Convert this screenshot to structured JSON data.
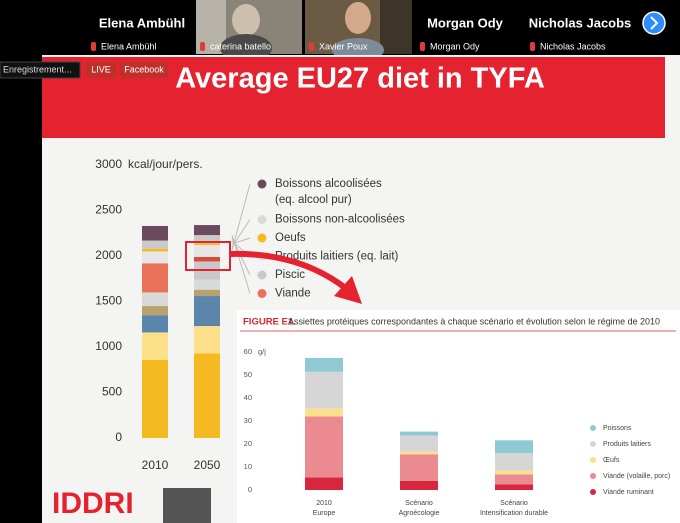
{
  "participants": [
    {
      "name": "Elena Ambühl",
      "label": "Elena Ambühl"
    },
    {
      "label": "caterina batello"
    },
    {
      "label": "Xavier Poux"
    },
    {
      "name": "Morgan Ody",
      "label": "Morgan Ody"
    },
    {
      "name": "Nicholas Jacobs",
      "label": "Nicholas Jacobs"
    }
  ],
  "badges": [
    "Enregistrement...",
    "LIVE",
    "Facebook"
  ],
  "slide": {
    "title": "Average EU27 diet in TYFA",
    "logo": "IDDRI",
    "chart": {
      "unit": "kcal/jour/pers.",
      "ylim": [
        0,
        3000
      ],
      "yticks": [
        0,
        500,
        1000,
        1500,
        2000,
        2500,
        3000
      ],
      "categories": [
        "2010",
        "2050"
      ],
      "stacks": [
        {
          "values": [
            860,
            300,
            190,
            100,
            150,
            320,
            130,
            30,
            90,
            160
          ],
          "colors": [
            "#f5b921",
            "#fde08a",
            "#5b85aa",
            "#b8a26e",
            "#d9d9d9",
            "#e8735a",
            "#e6e6e6",
            "#f5b921",
            "#c9c9c9",
            "#6b4a5e"
          ]
        },
        {
          "values": [
            930,
            300,
            330,
            70,
            110,
            200,
            50,
            130,
            20,
            90,
            110
          ],
          "colors": [
            "#f5b921",
            "#fde08a",
            "#5b85aa",
            "#b8a26e",
            "#d9d9d9",
            "#c9c9c9",
            "#d94a3a",
            "#e6e6e6",
            "#f5b921",
            "#c9c9c9",
            "#6b4a5e"
          ]
        }
      ],
      "legend": [
        {
          "label": "Boissons alcoolisées",
          "sub": "(eq. alcool pur)",
          "color": "#6b4a5e"
        },
        {
          "label": "Boissons non-alcoolisées",
          "color": "#d9d9d9"
        },
        {
          "label": "Oeufs",
          "color": "#f5b921"
        },
        {
          "label": "Produits laitiers (eq. lait)",
          "color": "#e6e6e6"
        },
        {
          "label": "Piscic",
          "color": "#c9c9c9"
        },
        {
          "label": "Viande",
          "color": "#e8735a"
        }
      ]
    }
  },
  "figure": {
    "prefix": "FIGURE E1.",
    "title": "Assiettes protéiques correspondantes à chaque scénario et évolution selon le régime de 2010",
    "unit": "g/j",
    "ylim": [
      0,
      60
    ],
    "yticks": [
      0,
      10,
      20,
      30,
      40,
      50,
      60
    ],
    "categories": [
      [
        "2010",
        "Europe"
      ],
      [
        "Scénario",
        "Agroécologie"
      ],
      [
        "Scénario",
        "Intensification durable"
      ]
    ],
    "series": [
      {
        "name": "Viande ruminant",
        "color": "#d7263d",
        "values": [
          5.5,
          4,
          2.5
        ]
      },
      {
        "name": "Viande (volaille, porc)",
        "color": "#ec8a92",
        "values": [
          26.5,
          11.5,
          4.3
        ]
      },
      {
        "name": "Œufs",
        "color": "#fbe08c",
        "values": [
          3.4,
          1.2,
          1.7
        ]
      },
      {
        "name": "Produits laitiers",
        "color": "#d6d6d6",
        "values": [
          16,
          7,
          7.6
        ]
      },
      {
        "name": "Poissons",
        "color": "#8fc9d3",
        "values": [
          6,
          1.7,
          5.5
        ]
      }
    ]
  }
}
